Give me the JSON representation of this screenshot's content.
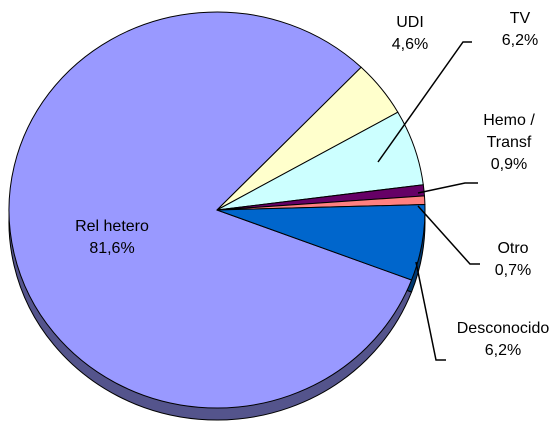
{
  "chart_data": {
    "type": "pie",
    "categories": [
      "Rel hetero",
      "UDI",
      "TV",
      "Hemo / Transf",
      "Otro",
      "Desconocido"
    ],
    "values": [
      81.6,
      4.6,
      6.2,
      0.9,
      0.7,
      6.2
    ],
    "value_labels": [
      "81,6%",
      "4,6%",
      "6,2%",
      "0,9%",
      "0,7%",
      "6,2%"
    ],
    "colors": [
      "#9999ff",
      "#ffffcc",
      "#ccffff",
      "#660066",
      "#ff8080",
      "#0066cc"
    ]
  }
}
